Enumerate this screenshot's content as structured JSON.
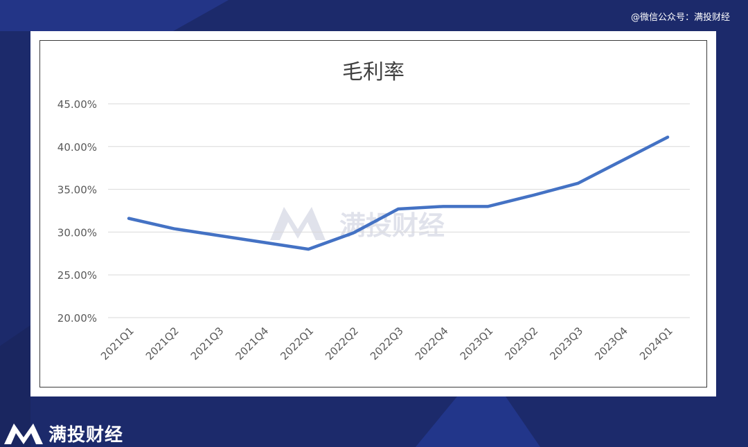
{
  "page": {
    "watermark_top": "@微信公众号：满投财经",
    "brand_name": "满投财经",
    "center_watermark": "满投财经",
    "colors": {
      "background": "#1c2a6b",
      "line": "#4472c4",
      "grid": "#d9d9d9",
      "axis_text": "#595959"
    }
  },
  "chart_data": {
    "type": "line",
    "title": "毛利率",
    "xlabel": "",
    "ylabel": "",
    "categories": [
      "2021Q1",
      "2021Q2",
      "2021Q3",
      "2021Q4",
      "2022Q1",
      "2022Q2",
      "2022Q3",
      "2022Q4",
      "2023Q1",
      "2023Q2",
      "2023Q3",
      "2023Q4",
      "2024Q1"
    ],
    "series": [
      {
        "values": [
          31.6,
          30.4,
          29.6,
          28.8,
          28.0,
          29.9,
          32.7,
          33.0,
          33.0,
          34.3,
          35.7,
          38.4,
          41.1
        ]
      }
    ],
    "ylim": [
      20,
      45
    ],
    "yticks": [
      20,
      25,
      30,
      35,
      40,
      45
    ],
    "ytick_labels": [
      "20.00%",
      "25.00%",
      "30.00%",
      "35.00%",
      "40.00%",
      "45.00%"
    ],
    "grid": true,
    "legend": "none"
  }
}
